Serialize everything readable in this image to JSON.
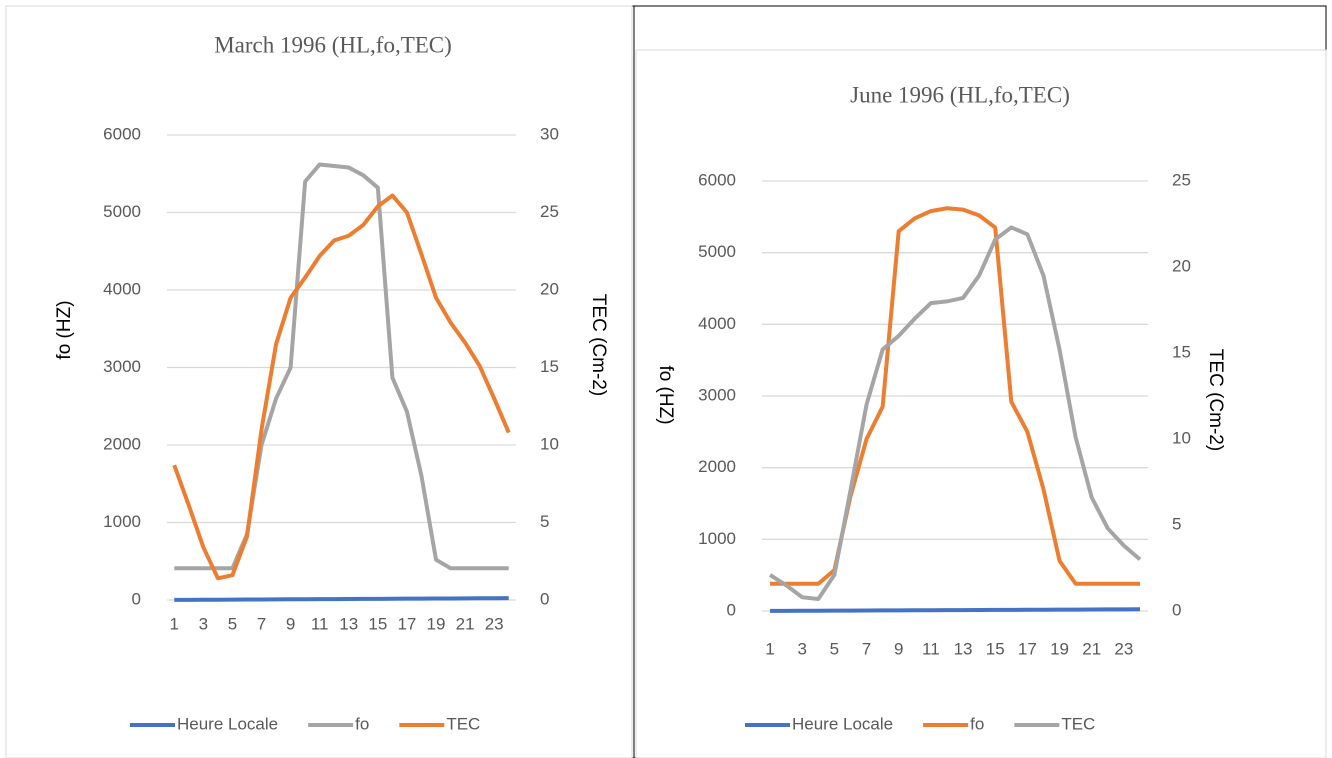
{
  "chart_data": [
    {
      "type": "line",
      "title": "March 1996 (HL,fo,TEC)",
      "y_label": "fo (HZ)",
      "y2_label": "TEC (Cm-2)",
      "categories": [
        "1",
        null,
        "3",
        null,
        "5",
        null,
        "7",
        null,
        "9",
        null,
        "11",
        null,
        "13",
        null,
        "15",
        null,
        "17",
        null,
        "19",
        null,
        "21",
        null,
        "23",
        null
      ],
      "series": [
        {
          "name": "Heure Locale",
          "color": "#4472c4",
          "axis": "y",
          "values": [
            1,
            2,
            3,
            4,
            5,
            6,
            7,
            8,
            9,
            10,
            11,
            12,
            13,
            14,
            15,
            16,
            17,
            18,
            19,
            20,
            21,
            22,
            23,
            24
          ]
        },
        {
          "name": "fo",
          "color": "#a5a5a5",
          "axis": "y",
          "values": [
            410,
            410,
            410,
            410,
            410,
            850,
            2000,
            2600,
            3000,
            5400,
            5620,
            5600,
            5580,
            5480,
            5320,
            2870,
            2430,
            1600,
            520,
            410,
            410,
            410,
            410,
            410
          ]
        },
        {
          "name": "TEC",
          "color": "#ed7d31",
          "axis": "y2",
          "values": [
            8.7,
            6.1,
            3.4,
            1.4,
            1.6,
            4.1,
            11,
            16.5,
            19.5,
            20.8,
            22.2,
            23.2,
            23.5,
            24.2,
            25.4,
            26.1,
            25,
            22.3,
            19.5,
            17.9,
            16.6,
            15.1,
            13,
            10.8
          ]
        }
      ],
      "ylim": [
        0,
        6000
      ],
      "yticks": [
        0,
        1000,
        2000,
        3000,
        4000,
        5000,
        6000
      ],
      "y2lim": [
        0,
        30
      ],
      "y2ticks": [
        0,
        5,
        10,
        15,
        20,
        25,
        30
      ],
      "grid": true
    },
    {
      "type": "line",
      "title": "June 1996 (HL,fo,TEC)",
      "y_label": "fo (HZ)",
      "y2_label": "TEC (Cm-2)",
      "categories": [
        "1",
        null,
        "3",
        null,
        "5",
        null,
        "7",
        null,
        "9",
        null,
        "11",
        null,
        "13",
        null,
        "15",
        null,
        "17",
        null,
        "19",
        null,
        "21",
        null,
        "23",
        null
      ],
      "series": [
        {
          "name": "Heure Locale",
          "color": "#4472c4",
          "axis": "y",
          "values": [
            1,
            2,
            3,
            4,
            5,
            6,
            7,
            8,
            9,
            10,
            11,
            12,
            13,
            14,
            15,
            16,
            17,
            18,
            19,
            20,
            21,
            22,
            23,
            24
          ]
        },
        {
          "name": "fo",
          "color": "#ed7d31",
          "axis": "y",
          "values": [
            380,
            380,
            380,
            380,
            570,
            1600,
            2400,
            2850,
            5300,
            5480,
            5580,
            5620,
            5600,
            5520,
            5350,
            2920,
            2500,
            1700,
            700,
            380,
            380,
            380,
            380,
            380
          ]
        },
        {
          "name": "TEC",
          "color": "#a5a5a5",
          "axis": "y2",
          "values": [
            2.1,
            1.5,
            0.8,
            0.7,
            2.1,
            7,
            12,
            15.2,
            16,
            17,
            17.9,
            18,
            18.2,
            19.5,
            21.6,
            22.3,
            21.9,
            19.5,
            15.2,
            10.1,
            6.6,
            4.8,
            3.8,
            3
          ]
        }
      ],
      "ylim": [
        0,
        6000
      ],
      "yticks": [
        0,
        1000,
        2000,
        3000,
        4000,
        5000,
        6000
      ],
      "y2lim": [
        0,
        25
      ],
      "y2ticks": [
        0,
        5,
        10,
        15,
        20,
        25
      ],
      "grid": true
    }
  ]
}
